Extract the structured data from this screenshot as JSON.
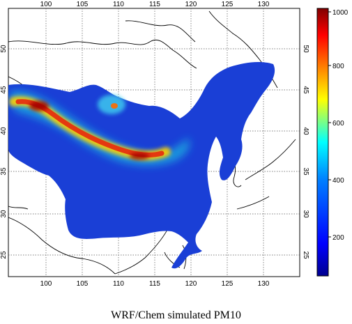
{
  "map": {
    "caption": "WRF/Chem simulated PM10",
    "lon_ticks": [
      "100",
      "105",
      "110",
      "115",
      "120",
      "125",
      "130"
    ],
    "lat_ticks": [
      "25",
      "30",
      "35",
      "40",
      "45",
      "50"
    ],
    "lon_range": [
      95,
      135
    ],
    "lat_range": [
      21,
      56
    ],
    "grid": true
  },
  "colorbar": {
    "ticks": [
      "200",
      "400",
      "600",
      "800",
      "1000"
    ],
    "range": [
      50,
      1030
    ],
    "colors": [
      "#00008f",
      "#0000ff",
      "#0080ff",
      "#00ffff",
      "#80ff80",
      "#ffff00",
      "#ff8000",
      "#ff0000",
      "#800000"
    ]
  },
  "colors": {
    "land_outline": "#000000",
    "field_low": "#1a3fd6"
  }
}
